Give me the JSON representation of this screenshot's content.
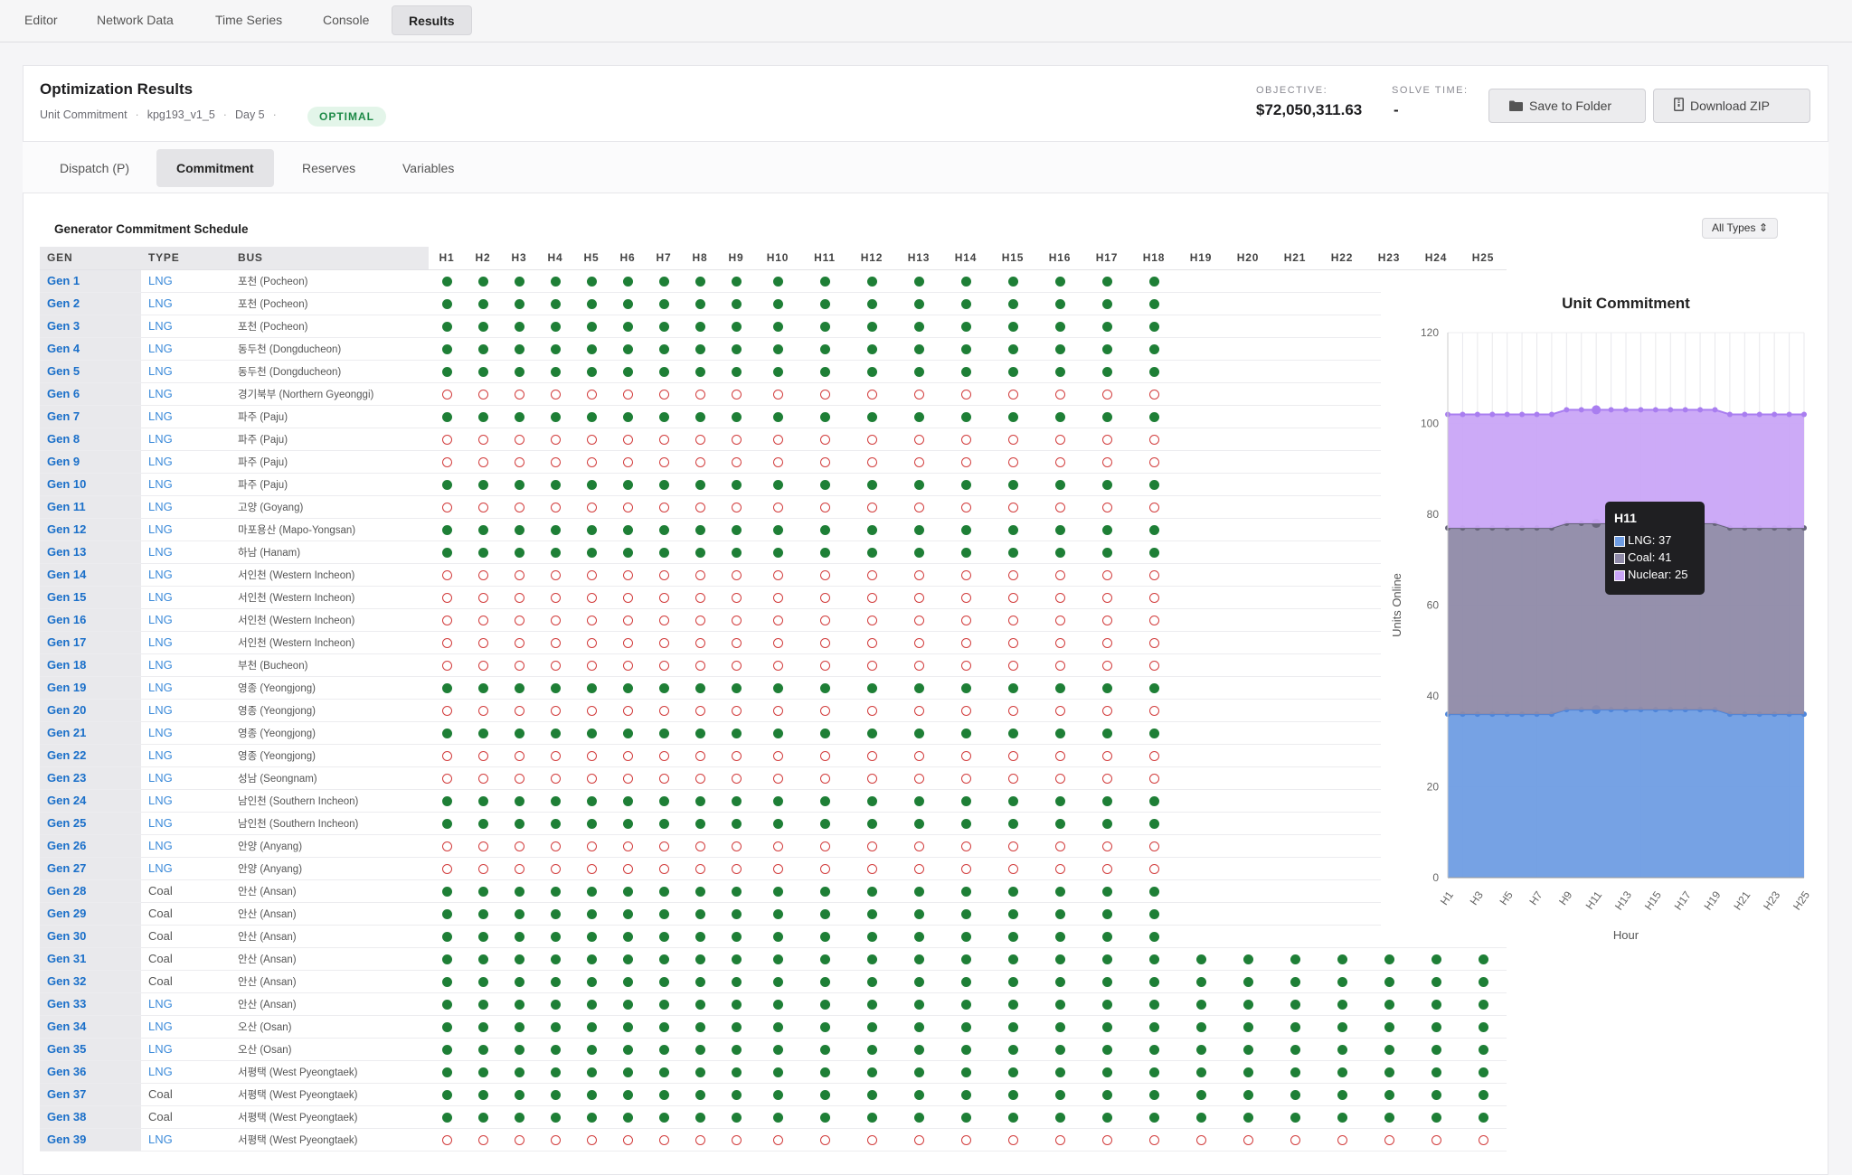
{
  "nav": {
    "tabs": [
      "Editor",
      "Network Data",
      "Time Series",
      "Console",
      "Results"
    ],
    "active": "Results"
  },
  "header": {
    "title": "Optimization Results",
    "meta": [
      "Unit Commitment",
      "kpg193_v1_5",
      "Day 5"
    ],
    "status": "OPTIMAL",
    "objective_label": "OBJECTIVE:",
    "objective_value": "$72,050,311.63",
    "solve_time_label": "SOLVE TIME:",
    "solve_time_value": "-",
    "save_button": "Save to Folder",
    "download_button": "Download ZIP"
  },
  "subtabs": [
    "Dispatch (P)",
    "Commitment",
    "Reserves",
    "Variables"
  ],
  "active_subtab": "Commitment",
  "schedule": {
    "title": "Generator Commitment Schedule",
    "filter": "All Types",
    "col_gen": "GEN",
    "col_type": "TYPE",
    "col_bus": "BUS",
    "hours": [
      "H1",
      "H2",
      "H3",
      "H4",
      "H5",
      "H6",
      "H7",
      "H8",
      "H9",
      "H10",
      "H11",
      "H12",
      "H13",
      "H14",
      "H15",
      "H16",
      "H17",
      "H18",
      "H19",
      "H20",
      "H21",
      "H22",
      "H23",
      "H24",
      "H25"
    ],
    "rows": [
      {
        "gen": "Gen 1",
        "type": "LNG",
        "bus": "포천 (Pocheon)",
        "on": true
      },
      {
        "gen": "Gen 2",
        "type": "LNG",
        "bus": "포천 (Pocheon)",
        "on": true
      },
      {
        "gen": "Gen 3",
        "type": "LNG",
        "bus": "포천 (Pocheon)",
        "on": true
      },
      {
        "gen": "Gen 4",
        "type": "LNG",
        "bus": "동두천 (Dongducheon)",
        "on": true
      },
      {
        "gen": "Gen 5",
        "type": "LNG",
        "bus": "동두천 (Dongducheon)",
        "on": true
      },
      {
        "gen": "Gen 6",
        "type": "LNG",
        "bus": "경기북부 (Northern Gyeonggi)",
        "on": false
      },
      {
        "gen": "Gen 7",
        "type": "LNG",
        "bus": "파주 (Paju)",
        "on": true
      },
      {
        "gen": "Gen 8",
        "type": "LNG",
        "bus": "파주 (Paju)",
        "on": false
      },
      {
        "gen": "Gen 9",
        "type": "LNG",
        "bus": "파주 (Paju)",
        "on": false
      },
      {
        "gen": "Gen 10",
        "type": "LNG",
        "bus": "파주 (Paju)",
        "on": true
      },
      {
        "gen": "Gen 11",
        "type": "LNG",
        "bus": "고양 (Goyang)",
        "on": false
      },
      {
        "gen": "Gen 12",
        "type": "LNG",
        "bus": "마포용산 (Mapo-Yongsan)",
        "on": true
      },
      {
        "gen": "Gen 13",
        "type": "LNG",
        "bus": "하남 (Hanam)",
        "on": true
      },
      {
        "gen": "Gen 14",
        "type": "LNG",
        "bus": "서인천 (Western Incheon)",
        "on": false
      },
      {
        "gen": "Gen 15",
        "type": "LNG",
        "bus": "서인천 (Western Incheon)",
        "on": false
      },
      {
        "gen": "Gen 16",
        "type": "LNG",
        "bus": "서인천 (Western Incheon)",
        "on": false
      },
      {
        "gen": "Gen 17",
        "type": "LNG",
        "bus": "서인천 (Western Incheon)",
        "on": false
      },
      {
        "gen": "Gen 18",
        "type": "LNG",
        "bus": "부천 (Bucheon)",
        "on": false
      },
      {
        "gen": "Gen 19",
        "type": "LNG",
        "bus": "영종 (Yeongjong)",
        "on": true
      },
      {
        "gen": "Gen 20",
        "type": "LNG",
        "bus": "영종 (Yeongjong)",
        "on": false
      },
      {
        "gen": "Gen 21",
        "type": "LNG",
        "bus": "영종 (Yeongjong)",
        "on": true
      },
      {
        "gen": "Gen 22",
        "type": "LNG",
        "bus": "영종 (Yeongjong)",
        "on": false
      },
      {
        "gen": "Gen 23",
        "type": "LNG",
        "bus": "성남 (Seongnam)",
        "on": false
      },
      {
        "gen": "Gen 24",
        "type": "LNG",
        "bus": "남인천 (Southern Incheon)",
        "on": true
      },
      {
        "gen": "Gen 25",
        "type": "LNG",
        "bus": "남인천 (Southern Incheon)",
        "on": true
      },
      {
        "gen": "Gen 26",
        "type": "LNG",
        "bus": "안양 (Anyang)",
        "on": false
      },
      {
        "gen": "Gen 27",
        "type": "LNG",
        "bus": "안양 (Anyang)",
        "on": false
      },
      {
        "gen": "Gen 28",
        "type": "Coal",
        "bus": "안산 (Ansan)",
        "on": true
      },
      {
        "gen": "Gen 29",
        "type": "Coal",
        "bus": "안산 (Ansan)",
        "on": true
      },
      {
        "gen": "Gen 30",
        "type": "Coal",
        "bus": "안산 (Ansan)",
        "on": true
      },
      {
        "gen": "Gen 31",
        "type": "Coal",
        "bus": "안산 (Ansan)",
        "on": true
      },
      {
        "gen": "Gen 32",
        "type": "Coal",
        "bus": "안산 (Ansan)",
        "on": true
      },
      {
        "gen": "Gen 33",
        "type": "LNG",
        "bus": "안산 (Ansan)",
        "on": true
      },
      {
        "gen": "Gen 34",
        "type": "LNG",
        "bus": "오산 (Osan)",
        "on": true
      },
      {
        "gen": "Gen 35",
        "type": "LNG",
        "bus": "오산 (Osan)",
        "on": true
      },
      {
        "gen": "Gen 36",
        "type": "LNG",
        "bus": "서평택 (West Pyeongtaek)",
        "on": true
      },
      {
        "gen": "Gen 37",
        "type": "Coal",
        "bus": "서평택 (West Pyeongtaek)",
        "on": true
      },
      {
        "gen": "Gen 38",
        "type": "Coal",
        "bus": "서평택 (West Pyeongtaek)",
        "on": true
      },
      {
        "gen": "Gen 39",
        "type": "LNG",
        "bus": "서평택 (West Pyeongtaek)",
        "on": false
      }
    ]
  },
  "chart_data": {
    "type": "area",
    "title": "Unit Commitment",
    "xlabel": "Hour",
    "ylabel": "Units Online",
    "ylim": [
      0,
      120
    ],
    "yticks": [
      0,
      20,
      40,
      60,
      80,
      100,
      120
    ],
    "x": [
      "H1",
      "H2",
      "H3",
      "H4",
      "H5",
      "H6",
      "H7",
      "H8",
      "H9",
      "H10",
      "H11",
      "H12",
      "H13",
      "H14",
      "H15",
      "H16",
      "H17",
      "H18",
      "H19",
      "H20",
      "H21",
      "H22",
      "H23",
      "H24",
      "H25"
    ],
    "x_tick_labels": [
      "H1",
      "H3",
      "H5",
      "H7",
      "H9",
      "H11",
      "H13",
      "H15",
      "H17",
      "H19",
      "H21",
      "H23",
      "H25"
    ],
    "stacked": true,
    "series": [
      {
        "name": "LNG",
        "color": "#6f9de3",
        "values": [
          36,
          36,
          36,
          36,
          36,
          36,
          36,
          36,
          37,
          37,
          37,
          37,
          37,
          37,
          37,
          37,
          37,
          37,
          37,
          36,
          36,
          36,
          36,
          36,
          36
        ]
      },
      {
        "name": "Coal",
        "color": "#8f8aa8",
        "values": [
          41,
          41,
          41,
          41,
          41,
          41,
          41,
          41,
          41,
          41,
          41,
          41,
          41,
          41,
          41,
          41,
          41,
          41,
          41,
          41,
          41,
          41,
          41,
          41,
          41
        ]
      },
      {
        "name": "Nuclear",
        "color": "#c9a5f7",
        "values": [
          25,
          25,
          25,
          25,
          25,
          25,
          25,
          25,
          25,
          25,
          25,
          25,
          25,
          25,
          25,
          25,
          25,
          25,
          25,
          25,
          25,
          25,
          25,
          25,
          25
        ]
      }
    ],
    "tooltip": {
      "title": "H11",
      "rows": [
        {
          "label": "LNG: 37",
          "color": "#6f9de3"
        },
        {
          "label": "Coal: 41",
          "color": "#8f8aa8"
        },
        {
          "label": "Nuclear: 25",
          "color": "#c9a5f7"
        }
      ]
    }
  }
}
